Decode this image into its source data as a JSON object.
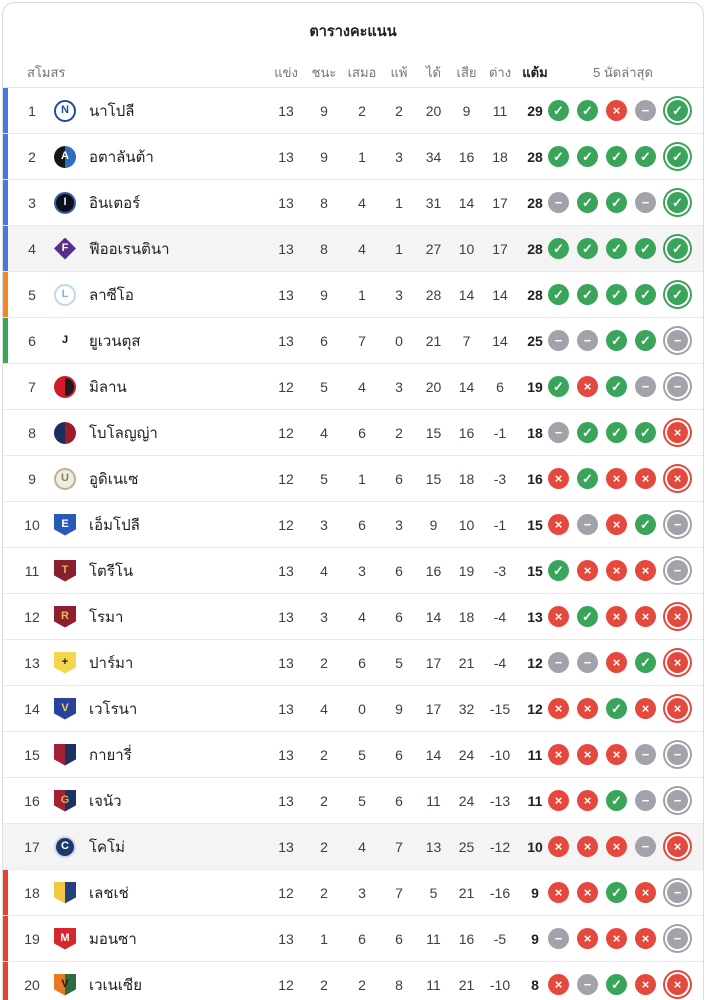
{
  "title": "ตารางคะแนน",
  "columns": {
    "club": "สโมสร",
    "played": "แข่ง",
    "won": "ชนะ",
    "drawn": "เสมอ",
    "lost": "แพ้",
    "gf": "ได้",
    "ga": "เสีย",
    "gd": "ต่าง",
    "pts": "แต้ม",
    "form": "5 นัดล่าสุด"
  },
  "form_glyphs": {
    "W": "✓",
    "L": "×",
    "D": "−"
  },
  "form_colors": {
    "W": "#3aa45a",
    "L": "#e5483c",
    "D": "#a2a2ab"
  },
  "zone_colors": {
    "ucl": "#4878e0",
    "uel": "#f5871f",
    "uecl": "#34a853",
    "rel": "#e8432c",
    "none": "transparent"
  },
  "rows": [
    {
      "rank": 1,
      "name": "นาโปลี",
      "played": 13,
      "won": 9,
      "drawn": 2,
      "lost": 2,
      "gf": 20,
      "ga": 9,
      "gd": "11",
      "pts": 29,
      "zone": "ucl",
      "highlighted": false,
      "form": [
        "W",
        "W",
        "L",
        "D",
        "W"
      ],
      "logo": {
        "shape": "circle",
        "colors": [
          "#ffffff"
        ],
        "border": "#1b4e9b",
        "letter": "N",
        "letter_color": "#1b4e9b"
      }
    },
    {
      "rank": 2,
      "name": "อตาลันต้า",
      "played": 13,
      "won": 9,
      "drawn": 1,
      "lost": 3,
      "gf": 34,
      "ga": 16,
      "gd": "18",
      "pts": 28,
      "zone": "ucl",
      "highlighted": false,
      "form": [
        "W",
        "W",
        "W",
        "W",
        "W"
      ],
      "logo": {
        "shape": "circle",
        "colors": [
          "#16161a",
          "#2f6bbf"
        ],
        "border": "",
        "letter": "A",
        "letter_color": "#ffffff"
      }
    },
    {
      "rank": 3,
      "name": "อินเตอร์",
      "played": 13,
      "won": 8,
      "drawn": 4,
      "lost": 1,
      "gf": 31,
      "ga": 14,
      "gd": "17",
      "pts": 28,
      "zone": "ucl",
      "highlighted": false,
      "form": [
        "D",
        "W",
        "W",
        "D",
        "W"
      ],
      "logo": {
        "shape": "circle",
        "colors": [
          "#0d1117"
        ],
        "border": "#3d5da8",
        "letter": "I",
        "letter_color": "#e8eef8"
      }
    },
    {
      "rank": 4,
      "name": "ฟีออเรนตินา",
      "played": 13,
      "won": 8,
      "drawn": 4,
      "lost": 1,
      "gf": 27,
      "ga": 10,
      "gd": "17",
      "pts": 28,
      "zone": "ucl",
      "highlighted": true,
      "form": [
        "W",
        "W",
        "W",
        "W",
        "W"
      ],
      "logo": {
        "shape": "diamond",
        "colors": [
          "#5a2d8a"
        ],
        "border": "",
        "letter": "F",
        "letter_color": "#ffffff"
      }
    },
    {
      "rank": 5,
      "name": "ลาซีโอ",
      "played": 13,
      "won": 9,
      "drawn": 1,
      "lost": 3,
      "gf": 28,
      "ga": 14,
      "gd": "14",
      "pts": 28,
      "zone": "uel",
      "highlighted": false,
      "form": [
        "W",
        "W",
        "W",
        "W",
        "W"
      ],
      "logo": {
        "shape": "circle",
        "colors": [
          "#ffffff"
        ],
        "border": "#bcd9ef",
        "letter": "L",
        "letter_color": "#7fb8de"
      }
    },
    {
      "rank": 6,
      "name": "ยูเวนตุส",
      "played": 13,
      "won": 6,
      "drawn": 7,
      "lost": 0,
      "gf": 21,
      "ga": 7,
      "gd": "14",
      "pts": 25,
      "zone": "uecl",
      "highlighted": false,
      "form": [
        "D",
        "D",
        "W",
        "W",
        "D"
      ],
      "logo": {
        "shape": "circle",
        "colors": [
          "#ffffff"
        ],
        "border": "",
        "letter": "J",
        "letter_color": "#111111"
      }
    },
    {
      "rank": 7,
      "name": "มิลาน",
      "played": 12,
      "won": 5,
      "drawn": 4,
      "lost": 3,
      "gf": 20,
      "ga": 14,
      "gd": "6",
      "pts": 19,
      "zone": "none",
      "highlighted": false,
      "form": [
        "W",
        "L",
        "W",
        "D",
        "D"
      ],
      "logo": {
        "shape": "circle",
        "colors": [
          "#d21a2b",
          "#1b1b1f"
        ],
        "border": "#d21a2b",
        "letter": "",
        "letter_color": ""
      }
    },
    {
      "rank": 8,
      "name": "โบโลญญ่า",
      "played": 12,
      "won": 4,
      "drawn": 6,
      "lost": 2,
      "gf": 15,
      "ga": 16,
      "gd": "-1",
      "pts": 18,
      "zone": "none",
      "highlighted": false,
      "form": [
        "D",
        "W",
        "W",
        "W",
        "L"
      ],
      "logo": {
        "shape": "circle",
        "colors": [
          "#1a2f5e",
          "#9e1b28"
        ],
        "border": "",
        "letter": "",
        "letter_color": ""
      }
    },
    {
      "rank": 9,
      "name": "อูดิเนเซ",
      "played": 12,
      "won": 5,
      "drawn": 1,
      "lost": 6,
      "gf": 15,
      "ga": 18,
      "gd": "-3",
      "pts": 16,
      "zone": "none",
      "highlighted": false,
      "form": [
        "L",
        "W",
        "L",
        "L",
        "L"
      ],
      "logo": {
        "shape": "circle",
        "colors": [
          "#efece2"
        ],
        "border": "#bfb289",
        "letter": "U",
        "letter_color": "#8a8060"
      }
    },
    {
      "rank": 10,
      "name": "เอ็มโปลี",
      "played": 12,
      "won": 3,
      "drawn": 6,
      "lost": 3,
      "gf": 9,
      "ga": 10,
      "gd": "-1",
      "pts": 15,
      "zone": "none",
      "highlighted": false,
      "form": [
        "L",
        "D",
        "L",
        "W",
        "D"
      ],
      "logo": {
        "shape": "shield",
        "colors": [
          "#2858b8"
        ],
        "border": "",
        "letter": "E",
        "letter_color": "#ffffff"
      }
    },
    {
      "rank": 11,
      "name": "โตรีโน",
      "played": 13,
      "won": 4,
      "drawn": 3,
      "lost": 6,
      "gf": 16,
      "ga": 19,
      "gd": "-3",
      "pts": 15,
      "zone": "none",
      "highlighted": false,
      "form": [
        "W",
        "L",
        "L",
        "L",
        "D"
      ],
      "logo": {
        "shape": "shield",
        "colors": [
          "#86202c"
        ],
        "border": "",
        "letter": "T",
        "letter_color": "#e2b256"
      }
    },
    {
      "rank": 12,
      "name": "โรมา",
      "played": 13,
      "won": 3,
      "drawn": 4,
      "lost": 6,
      "gf": 14,
      "ga": 18,
      "gd": "-4",
      "pts": 13,
      "zone": "none",
      "highlighted": false,
      "form": [
        "L",
        "W",
        "L",
        "L",
        "L"
      ],
      "logo": {
        "shape": "shield",
        "colors": [
          "#8c1f31"
        ],
        "border": "",
        "letter": "R",
        "letter_color": "#f2bf45"
      }
    },
    {
      "rank": 13,
      "name": "ปาร์มา",
      "played": 13,
      "won": 2,
      "drawn": 6,
      "lost": 5,
      "gf": 17,
      "ga": 21,
      "gd": "-4",
      "pts": 12,
      "zone": "none",
      "highlighted": false,
      "form": [
        "D",
        "D",
        "L",
        "W",
        "L"
      ],
      "logo": {
        "shape": "shield",
        "colors": [
          "#f2d74e"
        ],
        "border": "",
        "letter": "+",
        "letter_color": "#1d1d1d"
      }
    },
    {
      "rank": 14,
      "name": "เวโรนา",
      "played": 13,
      "won": 4,
      "drawn": 0,
      "lost": 9,
      "gf": 17,
      "ga": 32,
      "gd": "-15",
      "pts": 12,
      "zone": "none",
      "highlighted": false,
      "form": [
        "L",
        "L",
        "W",
        "L",
        "L"
      ],
      "logo": {
        "shape": "shield",
        "colors": [
          "#27439c"
        ],
        "border": "",
        "letter": "V",
        "letter_color": "#f2d74e"
      }
    },
    {
      "rank": 15,
      "name": "กายารี่",
      "played": 13,
      "won": 2,
      "drawn": 5,
      "lost": 6,
      "gf": 14,
      "ga": 24,
      "gd": "-10",
      "pts": 11,
      "zone": "none",
      "highlighted": false,
      "form": [
        "L",
        "L",
        "L",
        "D",
        "D"
      ],
      "logo": {
        "shape": "shield",
        "colors": [
          "#a62036",
          "#1c3260"
        ],
        "border": "",
        "letter": "",
        "letter_color": ""
      }
    },
    {
      "rank": 16,
      "name": "เจนัว",
      "played": 13,
      "won": 2,
      "drawn": 5,
      "lost": 6,
      "gf": 11,
      "ga": 24,
      "gd": "-13",
      "pts": 11,
      "zone": "none",
      "highlighted": false,
      "form": [
        "L",
        "L",
        "W",
        "D",
        "D"
      ],
      "logo": {
        "shape": "shield",
        "colors": [
          "#a62036",
          "#1c3260"
        ],
        "border": "",
        "letter": "G",
        "letter_color": "#e2b256"
      }
    },
    {
      "rank": 17,
      "name": "โคโม่",
      "played": 13,
      "won": 2,
      "drawn": 4,
      "lost": 7,
      "gf": 13,
      "ga": 25,
      "gd": "-12",
      "pts": 10,
      "zone": "none",
      "highlighted": true,
      "form": [
        "L",
        "L",
        "L",
        "D",
        "L"
      ],
      "logo": {
        "shape": "circle",
        "colors": [
          "#1d3a6e"
        ],
        "border": "#cfd8e8",
        "letter": "C",
        "letter_color": "#ffffff"
      }
    },
    {
      "rank": 18,
      "name": "เลชเช่",
      "played": 12,
      "won": 2,
      "drawn": 3,
      "lost": 7,
      "gf": 5,
      "ga": 21,
      "gd": "-16",
      "pts": 9,
      "zone": "rel",
      "highlighted": false,
      "form": [
        "L",
        "L",
        "W",
        "L",
        "D"
      ],
      "logo": {
        "shape": "shield",
        "colors": [
          "#f2c840",
          "#24407e"
        ],
        "border": "",
        "letter": "",
        "letter_color": ""
      }
    },
    {
      "rank": 19,
      "name": "มอนซา",
      "played": 13,
      "won": 1,
      "drawn": 6,
      "lost": 6,
      "gf": 11,
      "ga": 16,
      "gd": "-5",
      "pts": 9,
      "zone": "rel",
      "highlighted": false,
      "form": [
        "D",
        "L",
        "L",
        "L",
        "D"
      ],
      "logo": {
        "shape": "shield",
        "colors": [
          "#d6272f"
        ],
        "border": "",
        "letter": "M",
        "letter_color": "#ffffff"
      }
    },
    {
      "rank": 20,
      "name": "เวเนเซีย",
      "played": 12,
      "won": 2,
      "drawn": 2,
      "lost": 8,
      "gf": 11,
      "ga": 21,
      "gd": "-10",
      "pts": 8,
      "zone": "rel",
      "highlighted": false,
      "form": [
        "L",
        "D",
        "W",
        "L",
        "L"
      ],
      "logo": {
        "shape": "shield",
        "colors": [
          "#e87a22",
          "#2e6b45"
        ],
        "border": "",
        "letter": "V",
        "letter_color": "#1d1d1d"
      }
    }
  ]
}
